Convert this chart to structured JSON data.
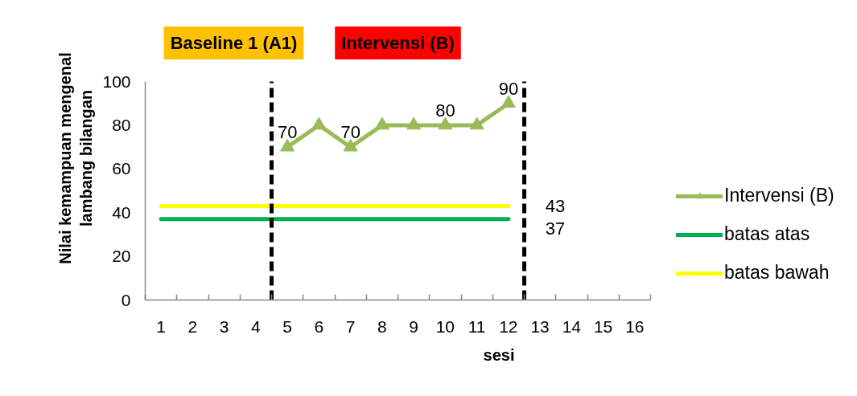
{
  "chart_data": {
    "type": "line",
    "xlabel": "sesi",
    "ylabel": "Nilai kemampuan mengenal lambang bilangan",
    "xlim": [
      0.5,
      16.5
    ],
    "xticks": [
      1,
      2,
      3,
      4,
      5,
      6,
      7,
      8,
      9,
      10,
      11,
      12,
      13,
      14,
      15,
      16
    ],
    "ylim": [
      0,
      100
    ],
    "yticks": [
      0,
      20,
      40,
      60,
      80,
      100
    ],
    "grid": false,
    "legend": "right",
    "series": [
      {
        "name": "Intervensi (B)",
        "color": "#9bbb59",
        "marker": "triangle",
        "x": [
          5,
          6,
          7,
          8,
          9,
          10,
          11,
          12
        ],
        "values": [
          70,
          80,
          70,
          80,
          80,
          80,
          80,
          90
        ],
        "value_labels": [
          "70",
          null,
          "70",
          null,
          null,
          "80",
          null,
          "90"
        ]
      },
      {
        "name": "batas atas",
        "color": "#00b050",
        "marker": "none",
        "x": [
          1,
          2,
          3,
          4,
          5,
          6,
          7,
          8,
          9,
          10,
          11,
          12
        ],
        "values": [
          37,
          37,
          37,
          37,
          37,
          37,
          37,
          37,
          37,
          37,
          37,
          37
        ]
      },
      {
        "name": "batas bawah",
        "color": "#ffff00",
        "marker": "none",
        "x": [
          1,
          2,
          3,
          4,
          5,
          6,
          7,
          8,
          9,
          10,
          11,
          12
        ],
        "values": [
          43,
          43,
          43,
          43,
          43,
          43,
          43,
          43,
          43,
          43,
          43,
          43
        ]
      }
    ],
    "ref_lines": [
      {
        "axis": "x",
        "value": 4.5,
        "color": "#000000",
        "line_style": "dashed"
      },
      {
        "axis": "x",
        "value": 12.5,
        "color": "#000000",
        "line_style": "dashed"
      }
    ],
    "annotations": [
      "Baseline 1 (A1)",
      "Intervensi (B)",
      {
        "text": "43",
        "x": 12,
        "y": 43
      },
      {
        "text": "37",
        "x": 12,
        "y": 37
      }
    ]
  }
}
